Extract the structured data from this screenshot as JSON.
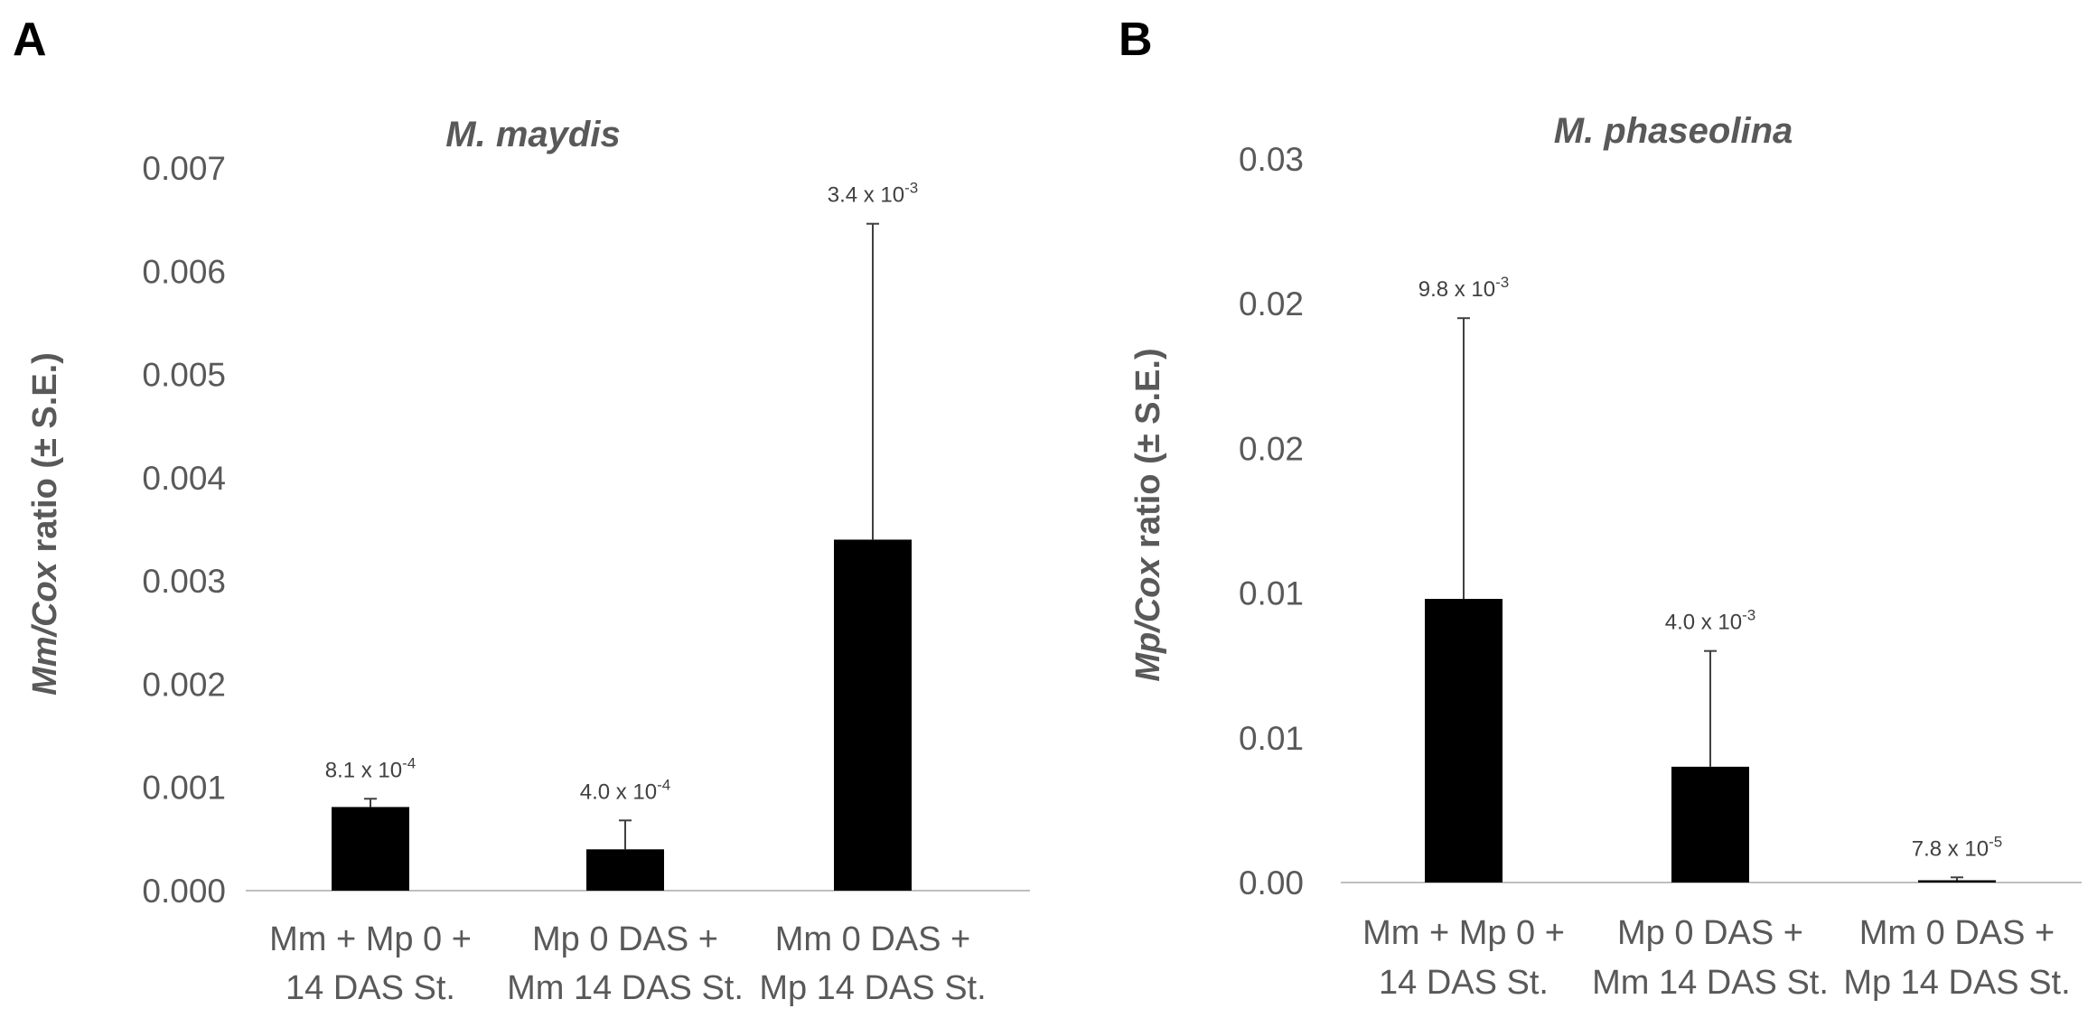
{
  "panels": {
    "a_letter": "A",
    "b_letter": "B"
  },
  "chart_data": [
    {
      "type": "bar",
      "title": "M. maydis",
      "ylabel": "Mm/Cox ratio (± S.E.)",
      "ylabel_italic_part": "Mm/Cox",
      "ylabel_rest": " ratio (± S.E.)",
      "xlabel": "",
      "ylim": [
        0,
        0.007
      ],
      "yticks": [
        "0.000",
        "0.001",
        "0.002",
        "0.003",
        "0.004",
        "0.005",
        "0.006",
        "0.007"
      ],
      "categories": [
        [
          "Mm + Mp 0  +",
          "14 DAS St."
        ],
        [
          "Mp 0 DAS +",
          "Mm 14 DAS St."
        ],
        [
          "Mm 0 DAS +",
          "Mp 14 DAS St."
        ]
      ],
      "values": [
        0.00081,
        0.0004,
        0.0034
      ],
      "errors": [
        8e-05,
        0.00028,
        0.00306
      ],
      "data_labels": [
        {
          "mantissa": "8.1 x 10",
          "exp": "-4"
        },
        {
          "mantissa": "4.0 x 10",
          "exp": "-4"
        },
        {
          "mantissa": "3.4 x 10",
          "exp": "-3"
        }
      ],
      "grid": false,
      "bar_color": "#000000"
    },
    {
      "type": "bar",
      "title": "M. phaseolina",
      "ylabel": "Mp/Cox ratio (± S.E.)",
      "ylabel_italic_part": "Mp/Cox",
      "ylabel_rest": " ratio (± S.E.)",
      "xlabel": "",
      "ylim": [
        0,
        0.025
      ],
      "yticks": [
        "0.00",
        "0.01",
        "0.01",
        "0.02",
        "0.02",
        "0.03"
      ],
      "categories": [
        [
          "Mm + Mp 0  +",
          "14 DAS St."
        ],
        [
          "Mp 0 DAS +",
          "Mm 14 DAS St."
        ],
        [
          "Mm 0 DAS +",
          "Mp 14 DAS St."
        ]
      ],
      "values": [
        0.0098,
        0.004,
        7.8e-05
      ],
      "errors": [
        0.0097,
        0.004,
        0.0001
      ],
      "data_labels": [
        {
          "mantissa": "9.8 x 10",
          "exp": "-3"
        },
        {
          "mantissa": "4.0 x 10",
          "exp": "-3"
        },
        {
          "mantissa": "7.8 x 10",
          "exp": "-5"
        }
      ],
      "grid": false,
      "bar_color": "#000000"
    }
  ]
}
